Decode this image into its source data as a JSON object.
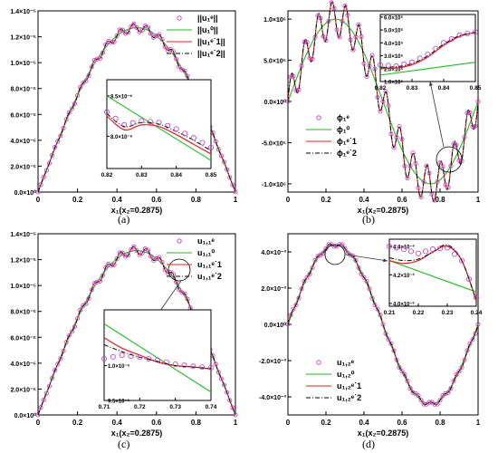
{
  "figure": {
    "captions": [
      "(a)",
      "(b)",
      "(c)",
      "(d)"
    ]
  },
  "colors": {
    "eps": "#c03cc0",
    "zero": "#22bb22",
    "one": "#e02020",
    "two": "#000000",
    "axis": "#000000"
  },
  "chart_data": [
    {
      "id": "a",
      "type": "line",
      "xlabel": "x₁(x₂=0.2875)",
      "xlim": [
        0,
        1
      ],
      "ylim": [
        0,
        1.4e-05
      ],
      "x_ticks": [
        0,
        0.2,
        0.4,
        0.6,
        0.8,
        1
      ],
      "x_tick_labels": [
        "0",
        "0.2",
        "0.4",
        "0.6",
        "0.8",
        "1"
      ],
      "y_ticks": [
        0,
        2e-06,
        4e-06,
        6e-06,
        8e-06,
        1e-05,
        1.2e-05,
        1.4e-05
      ],
      "y_tick_labels": [
        "0.0×10⁰",
        "2.0×10⁻⁶",
        "4.0×10⁻⁶",
        "6.0×10⁻⁶",
        "8.0×10⁻⁶",
        "1.0×10⁻⁵",
        "1.2×10⁻⁵",
        "1.4×10⁻⁵"
      ],
      "legend": [
        "||u₁ᵉ||",
        "||u₁⁰||",
        "||u₁ᵉ˙1||",
        "||u₁ᵉ˙2||"
      ],
      "curve": {
        "kind": "arch",
        "peak": 1.27e-05,
        "osc_amp": 3.2e-07,
        "osc_freq": 30
      },
      "inset": {
        "xlim": [
          0.82,
          0.85
        ],
        "ylim": [
          7.6e-06,
          8.7e-06
        ],
        "x_ticks": [
          0.82,
          0.83,
          0.84,
          0.85
        ],
        "x_tick_labels": [
          "0.82",
          "0.83",
          "0.84",
          "0.85"
        ],
        "y_ticks": [
          8e-06,
          8.5e-06
        ],
        "y_tick_labels": [
          "8.0×10⁻⁶",
          "8.5×10⁻⁶"
        ],
        "zero": [
          [
            0.82,
            8.5e-06
          ],
          [
            0.85,
            7.7e-06
          ]
        ],
        "one": [
          [
            0.82,
            8.25e-06
          ],
          [
            0.825,
            8.08e-06
          ],
          [
            0.83,
            8.14e-06
          ],
          [
            0.835,
            8.12e-06
          ],
          [
            0.84,
            8.02e-06
          ],
          [
            0.845,
            7.9e-06
          ],
          [
            0.85,
            7.78e-06
          ]
        ],
        "two": [
          [
            0.82,
            8.28e-06
          ],
          [
            0.825,
            8.12e-06
          ],
          [
            0.83,
            8.17e-06
          ],
          [
            0.835,
            8.15e-06
          ],
          [
            0.84,
            8.06e-06
          ],
          [
            0.845,
            7.95e-06
          ],
          [
            0.85,
            7.82e-06
          ]
        ],
        "eps": [
          [
            0.82,
            8.3e-06
          ],
          [
            0.825,
            8.14e-06
          ],
          [
            0.83,
            8.19e-06
          ],
          [
            0.835,
            8.17e-06
          ],
          [
            0.84,
            8.09e-06
          ],
          [
            0.845,
            7.98e-06
          ],
          [
            0.85,
            7.86e-06
          ]
        ]
      }
    },
    {
      "id": "b",
      "type": "line",
      "xlabel": "x₁(x₂=0.2875)",
      "xlim": [
        0,
        1
      ],
      "ylim": [
        -1100000.0,
        1100000.0
      ],
      "x_ticks": [
        0,
        0.2,
        0.4,
        0.6,
        0.8,
        1
      ],
      "x_tick_labels": [
        "0",
        "0.2",
        "0.4",
        "0.6",
        "0.8",
        "1"
      ],
      "y_ticks": [
        -1000000.0,
        -500000.0,
        0,
        500000.0,
        1000000.0
      ],
      "y_tick_labels": [
        "-1.0×10⁶",
        "-5.0×10⁵",
        "0.0×10⁰",
        "5.0×10⁵",
        "1.0×10⁶"
      ],
      "legend": [
        "ϕ₁ᵉ",
        "ϕ₁⁰",
        "ϕ₁ᵉ˙1",
        "ϕ₁ᵉ˙2"
      ],
      "curve": {
        "kind": "sine",
        "amp": 1000000.0,
        "osc_amp": 220000.0,
        "osc_freq": 28
      },
      "inset": {
        "xlim": [
          0.82,
          0.85
        ],
        "ylim": [
          100000.0,
          620000.0
        ],
        "x_ticks": [
          0.82,
          0.83,
          0.84,
          0.85
        ],
        "x_tick_labels": [
          "0.82",
          "0.83",
          "0.84",
          "0.85"
        ],
        "y_ticks": [
          100000.0,
          200000.0,
          300000.0,
          400000.0,
          500000.0,
          600000.0
        ],
        "y_tick_labels": [
          "1.0×10⁵",
          "2.0×10⁵",
          "3.0×10⁵",
          "4.0×10⁵",
          "5.0×10⁵",
          "6.0×10⁵"
        ],
        "zero": [
          [
            0.82,
            150000.0
          ],
          [
            0.85,
            250000.0
          ]
        ],
        "one": [
          [
            0.82,
            200000.0
          ],
          [
            0.825,
            205000.0
          ],
          [
            0.83,
            230000.0
          ],
          [
            0.835,
            290000.0
          ],
          [
            0.84,
            380000.0
          ],
          [
            0.845,
            450000.0
          ],
          [
            0.85,
            480000.0
          ]
        ],
        "two": [
          [
            0.82,
            210000.0
          ],
          [
            0.825,
            215000.0
          ],
          [
            0.83,
            240000.0
          ],
          [
            0.835,
            300000.0
          ],
          [
            0.84,
            390000.0
          ],
          [
            0.845,
            455000.0
          ],
          [
            0.85,
            482000.0
          ]
        ],
        "eps": [
          [
            0.82,
            230000.0
          ],
          [
            0.825,
            220000.0
          ],
          [
            0.83,
            250000.0
          ],
          [
            0.835,
            310000.0
          ],
          [
            0.84,
            400000.0
          ],
          [
            0.845,
            460000.0
          ],
          [
            0.85,
            485000.0
          ]
        ]
      }
    },
    {
      "id": "c",
      "type": "line",
      "xlabel": "x₁(x₂=0.2875)",
      "xlim": [
        0,
        1
      ],
      "ylim": [
        0,
        1.4e-05
      ],
      "x_ticks": [
        0,
        0.2,
        0.4,
        0.6,
        0.8,
        1
      ],
      "x_tick_labels": [
        "0",
        "0.2",
        "0.4",
        "0.6",
        "0.8",
        "1"
      ],
      "y_ticks": [
        0,
        2e-06,
        4e-06,
        6e-06,
        8e-06,
        1e-05,
        1.2e-05,
        1.4e-05
      ],
      "y_tick_labels": [
        "0.0×10⁰",
        "2.0×10⁻⁶",
        "4.0×10⁻⁶",
        "6.0×10⁻⁶",
        "8.0×10⁻⁶",
        "1.0×10⁻⁵",
        "1.2×10⁻⁵",
        "1.4×10⁻⁵"
      ],
      "legend": [
        "u₁,₁ᵉ",
        "u₁,₁⁰",
        "u₁,₁ᵉ˙1",
        "u₁,₁ᵉ˙2"
      ],
      "curve": {
        "kind": "arch",
        "peak": 1.27e-05,
        "osc_amp": 3.2e-07,
        "osc_freq": 30
      },
      "inset": {
        "xlim": [
          0.71,
          0.74
        ],
        "ylim": [
          9.5e-06,
          1.08e-05
        ],
        "x_ticks": [
          0.71,
          0.72,
          0.73,
          0.74
        ],
        "x_tick_labels": [
          "0.71",
          "0.72",
          "0.73",
          "0.74"
        ],
        "y_ticks": [
          9.5e-06,
          1e-05
        ],
        "y_tick_labels": [
          "9.5×10⁻⁶",
          "1.0×10⁻⁵"
        ],
        "zero": [
          [
            0.71,
            1.06e-05
          ],
          [
            0.74,
            9.62e-06
          ]
        ],
        "one": [
          [
            0.71,
            1.04e-05
          ],
          [
            0.715,
            1.025e-05
          ],
          [
            0.72,
            1.015e-05
          ],
          [
            0.725,
            1.005e-05
          ],
          [
            0.73,
            1e-05
          ],
          [
            0.735,
            9.98e-06
          ],
          [
            0.74,
            9.95e-06
          ]
        ],
        "two": [
          [
            0.71,
            1.03e-05
          ],
          [
            0.715,
            1.02e-05
          ],
          [
            0.72,
            1.012e-05
          ],
          [
            0.725,
            1.006e-05
          ],
          [
            0.73,
            1e-05
          ],
          [
            0.735,
            9.98e-06
          ],
          [
            0.74,
            9.96e-06
          ]
        ],
        "eps": [
          [
            0.71,
            1.01e-05
          ],
          [
            0.715,
            1.015e-05
          ],
          [
            0.72,
            1.012e-05
          ],
          [
            0.725,
            1.008e-05
          ],
          [
            0.73,
            1.002e-05
          ],
          [
            0.735,
            9.99e-06
          ],
          [
            0.74,
            9.97e-06
          ]
        ]
      }
    },
    {
      "id": "d",
      "type": "line",
      "xlabel": "x₁(x₂=0.2875)",
      "xlim": [
        0,
        1
      ],
      "ylim": [
        -0.005,
        0.005
      ],
      "x_ticks": [
        0,
        0.2,
        0.4,
        0.6,
        0.8,
        1
      ],
      "x_tick_labels": [
        "0",
        "0.2",
        "0.4",
        "0.6",
        "0.8",
        "1"
      ],
      "y_ticks": [
        -0.004,
        -0.002,
        0,
        0.002,
        0.004
      ],
      "y_tick_labels": [
        "-4.0×10⁻³",
        "-2.0×10⁻³",
        "0.0×10⁰",
        "2.0×10⁻³",
        "4.0×10⁻³"
      ],
      "legend": [
        "u₁,₂ᵉ",
        "u₁,₂⁰",
        "u₁,₂ᵉ˙1",
        "u₁,₂ᵉ˙2"
      ],
      "curve": {
        "kind": "sine",
        "amp": 0.0044,
        "osc_amp": 0.00012,
        "osc_freq": 30
      },
      "inset": {
        "xlim": [
          0.21,
          0.24
        ],
        "ylim": [
          0.00398,
          0.00445
        ],
        "x_ticks": [
          0.21,
          0.22,
          0.23,
          0.24
        ],
        "x_tick_labels": [
          "0.21",
          "0.22",
          "0.23",
          "0.24"
        ],
        "y_ticks": [
          0.004,
          0.0042,
          0.0044
        ],
        "y_tick_labels": [
          "4.0×10⁻³",
          "4.2×10⁻³",
          "4.4×10⁻³"
        ],
        "zero": [
          [
            0.21,
            0.0043
          ],
          [
            0.24,
            0.00408
          ]
        ],
        "one": [
          [
            0.21,
            0.0043
          ],
          [
            0.215,
            0.00428
          ],
          [
            0.22,
            0.0043
          ],
          [
            0.225,
            0.00436
          ],
          [
            0.23,
            0.0044
          ],
          [
            0.235,
            0.0043
          ],
          [
            0.24,
            0.00402
          ]
        ],
        "two": [
          [
            0.21,
            0.00432
          ],
          [
            0.215,
            0.0043
          ],
          [
            0.22,
            0.00431
          ],
          [
            0.225,
            0.00436
          ],
          [
            0.23,
            0.00441
          ],
          [
            0.235,
            0.0043
          ],
          [
            0.24,
            0.00402
          ]
        ],
        "eps": [
          [
            0.21,
            0.0044
          ],
          [
            0.215,
            0.00438
          ],
          [
            0.22,
            0.00435
          ],
          [
            0.225,
            0.00438
          ],
          [
            0.23,
            0.00439
          ],
          [
            0.235,
            0.0043
          ],
          [
            0.24,
            0.00404
          ]
        ]
      }
    }
  ]
}
